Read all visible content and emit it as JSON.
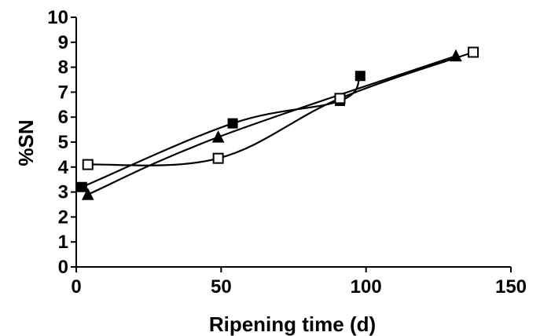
{
  "chart_data": {
    "type": "line",
    "title": "",
    "xlabel": "Ripening time (d)",
    "ylabel": "%SN",
    "xlim": [
      0,
      150
    ],
    "ylim": [
      0,
      10
    ],
    "xticks": [
      0,
      50,
      100,
      150
    ],
    "yticks": [
      0,
      1,
      2,
      3,
      4,
      5,
      6,
      7,
      8,
      9,
      10
    ],
    "grid": false,
    "legend": "none",
    "series": [
      {
        "marker": "filled-square",
        "color": "#000000",
        "x": [
          2,
          54,
          91,
          98
        ],
        "y": [
          3.2,
          5.75,
          6.65,
          7.65
        ]
      },
      {
        "marker": "filled-triangle",
        "color": "#000000",
        "x": [
          4,
          49,
          131
        ],
        "y": [
          2.9,
          5.2,
          8.45
        ]
      },
      {
        "marker": "open-square",
        "color": "#000000",
        "x": [
          4,
          49,
          91,
          137
        ],
        "y": [
          4.1,
          4.35,
          6.75,
          8.6
        ]
      }
    ]
  }
}
